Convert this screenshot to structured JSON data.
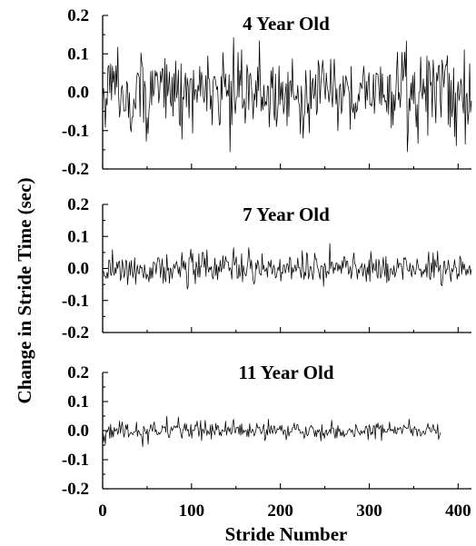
{
  "chart_data": {
    "type": "line",
    "ylabel": "Change in Stride Time (sec)",
    "xlabel": "Stride Number",
    "xlim": [
      0,
      415
    ],
    "x_ticks": [
      "0",
      "100",
      "200",
      "300",
      "400"
    ],
    "x_tick_values": [
      0,
      100,
      200,
      300,
      400
    ],
    "y_ticks": [
      "0.2",
      "0.1",
      "0.0",
      "-0.1",
      "-0.2"
    ],
    "y_tick_values": [
      0.2,
      0.1,
      0.0,
      -0.1,
      -0.2
    ],
    "grid": false,
    "panels": [
      {
        "title": "4 Year Old",
        "ylim": [
          -0.2,
          0.2
        ],
        "series": [
          {
            "n_strides": 415,
            "amplitude_sd": 0.055,
            "min": -0.155,
            "max": 0.185,
            "x_range": [
              0,
              415
            ]
          }
        ]
      },
      {
        "title": "7 Year Old",
        "ylim": [
          -0.2,
          0.2
        ],
        "series": [
          {
            "n_strides": 415,
            "amplitude_sd": 0.025,
            "min": -0.1,
            "max": 0.08,
            "x_range": [
              0,
              415
            ]
          }
        ]
      },
      {
        "title": "11 Year Old",
        "ylim": [
          -0.2,
          0.2
        ],
        "series": [
          {
            "n_strides": 380,
            "amplitude_sd": 0.016,
            "min": -0.055,
            "max": 0.05,
            "x_range": [
              0,
              380
            ]
          }
        ]
      }
    ]
  }
}
